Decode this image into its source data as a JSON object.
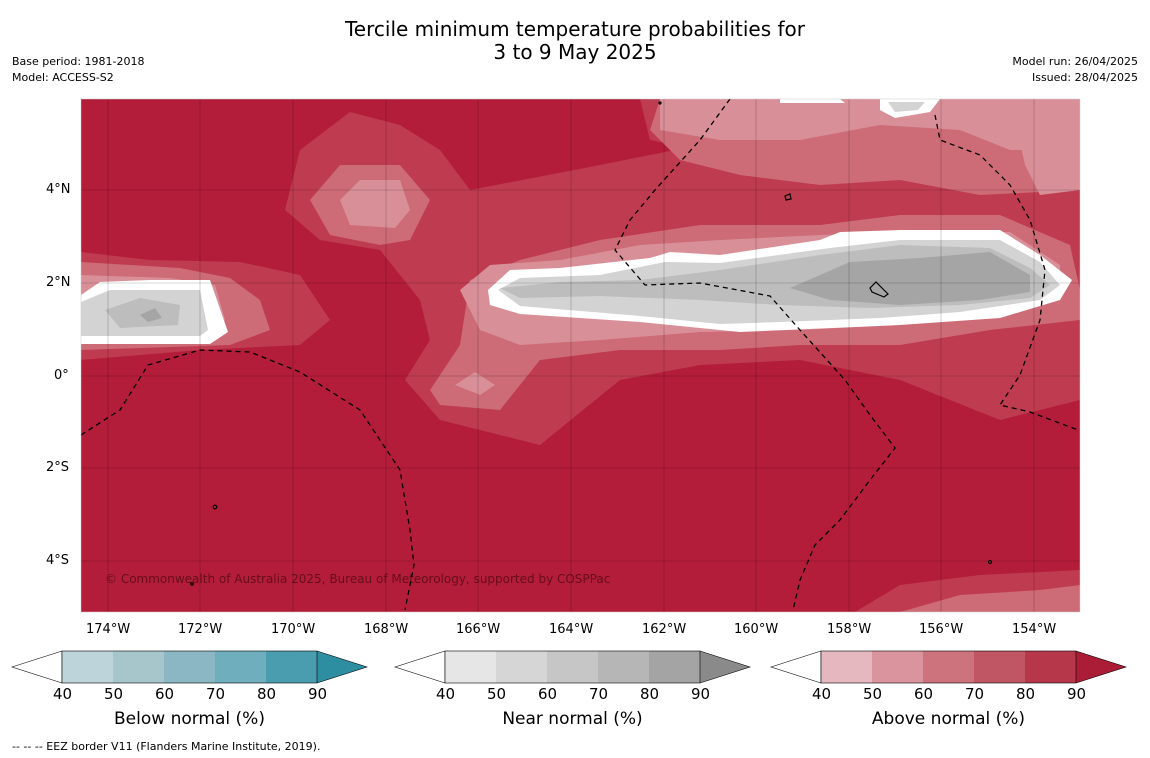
{
  "title_line1": "Tercile minimum temperature probabilities for",
  "title_line2": "3 to 9 May 2025",
  "base_period": "Base period: 1981-2018",
  "model": "Model: ACCESS-S2",
  "model_run": "Model run: 26/04/2025",
  "issued": "Issued: 28/04/2025",
  "copyright": "© Commonwealth of Australia 2025, Bureau of Meteorology, supported by COSPPac",
  "footnote": "--  --  -- EEZ border V11 (Flanders Marine Institute, 2019).",
  "lon_labels": [
    "174°W",
    "172°W",
    "170°W",
    "168°W",
    "166°W",
    "164°W",
    "162°W",
    "160°W",
    "158°W",
    "156°W",
    "154°W"
  ],
  "lat_labels": [
    "4°N",
    "2°N",
    "0°",
    "2°S",
    "4°S"
  ],
  "colorbars": [
    {
      "label": "Below normal (%)",
      "ticks": [
        "40",
        "50",
        "60",
        "70",
        "80",
        "90"
      ],
      "colors": [
        "#ffffff",
        "#bdd4db",
        "#a7c6cc",
        "#8ab7c3",
        "#6eaebd",
        "#4a9dae",
        "#2e8ea1"
      ]
    },
    {
      "label": "Near normal (%)",
      "ticks": [
        "40",
        "50",
        "60",
        "70",
        "80",
        "90"
      ],
      "colors": [
        "#ffffff",
        "#e6e6e6",
        "#d6d6d6",
        "#c6c6c6",
        "#b6b6b6",
        "#a4a4a4",
        "#8a8a8a"
      ]
    },
    {
      "label": "Above normal (%)",
      "ticks": [
        "40",
        "50",
        "60",
        "70",
        "80",
        "90"
      ],
      "colors": [
        "#ffffff",
        "#e4b8be",
        "#d9949d",
        "#cd737d",
        "#c05664",
        "#b7374a",
        "#ab1c37"
      ]
    }
  ]
}
